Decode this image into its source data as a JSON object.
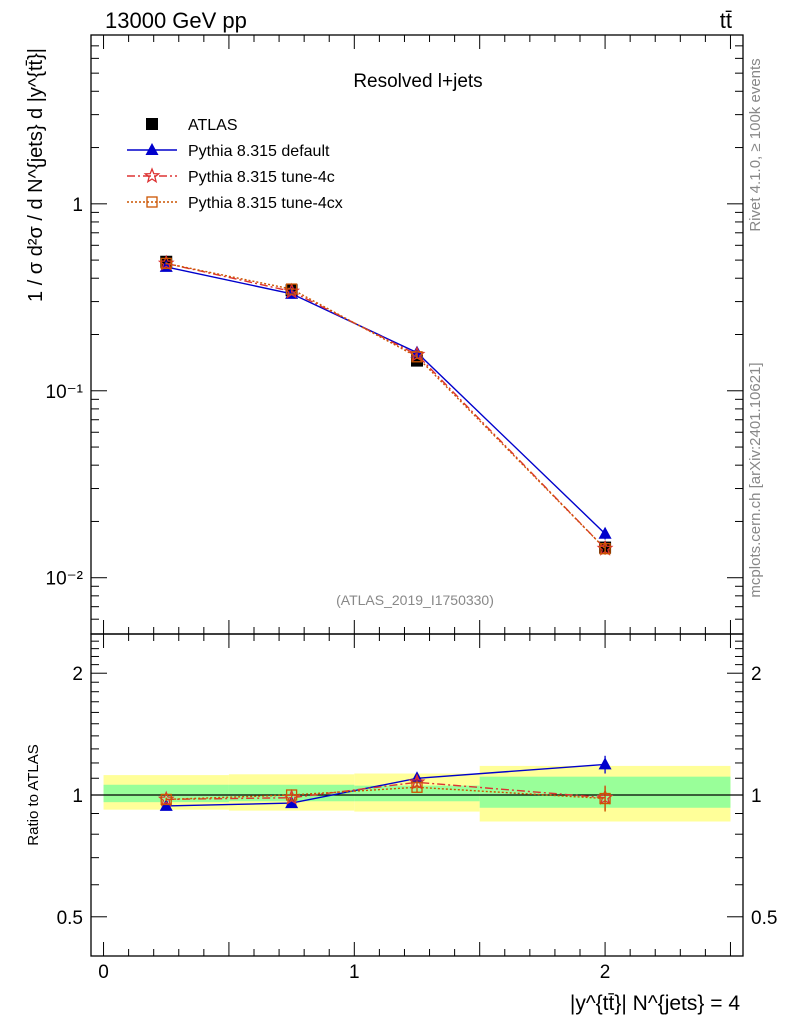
{
  "header": {
    "energy_label": "13000 GeV pp",
    "process_label": "tt̄"
  },
  "side_labels": {
    "rivet": "Rivet 4.1.0, ≥ 100k events",
    "mcplots": "mcplots.cern.ch [arXiv:2401.10621]"
  },
  "chart_data": [
    {
      "type": "line",
      "panel": "main",
      "title": "Resolved l+jets",
      "analysis_id": "(ATLAS_2019_I1750330)",
      "ylabel": "1 / σ d²σ / d N^{jets} d |y^{tt̄}|",
      "yscale": "log",
      "ylim": [
        0.005,
        8
      ],
      "xlim": [
        -0.05,
        2.55
      ],
      "y_ticks": [
        {
          "value": 1,
          "label": "1"
        },
        {
          "value": 0.1,
          "label": "10⁻¹"
        },
        {
          "value": 0.01,
          "label": "10⁻²"
        }
      ],
      "bin_edges": [
        0,
        0.5,
        1,
        1.5,
        2.5
      ],
      "x": [
        0.25,
        0.75,
        1.25,
        2.0
      ],
      "series": [
        {
          "name": "ATLAS",
          "color": "#000000",
          "marker": "square",
          "style": "none",
          "values": [
            0.49,
            0.345,
            0.145,
            0.0145
          ],
          "errors": [
            0.015,
            0.01,
            0.005,
            0.0012
          ]
        },
        {
          "name": "Pythia 8.315 default",
          "color": "#0000cc",
          "marker": "triangle",
          "style": "solid",
          "values": [
            0.46,
            0.33,
            0.16,
            0.0172
          ],
          "errors": [
            0.006,
            0.005,
            0.004,
            0.0012
          ]
        },
        {
          "name": "Pythia 8.315 tune-4c",
          "color": "#dd3333",
          "marker": "star",
          "style": "dashdot",
          "values": [
            0.48,
            0.34,
            0.156,
            0.0143
          ],
          "errors": [
            0.006,
            0.005,
            0.004,
            0.001
          ]
        },
        {
          "name": "Pythia 8.315 tune-4cx",
          "color": "#cc5500",
          "marker": "open-square",
          "style": "dotted",
          "values": [
            0.48,
            0.35,
            0.152,
            0.0143
          ],
          "errors": [
            0.006,
            0.005,
            0.004,
            0.001
          ]
        }
      ],
      "legend_position": "top-left"
    },
    {
      "type": "line",
      "panel": "ratio",
      "ylabel": "Ratio to ATLAS",
      "xlabel": "|y^{tt̄}| N^{jets} = 4",
      "yscale": "log",
      "ylim": [
        0.4,
        2.5
      ],
      "y_ticks": [
        {
          "value": 2,
          "label": "2"
        },
        {
          "value": 1,
          "label": "1"
        },
        {
          "value": 0.5,
          "label": "0.5"
        }
      ],
      "x_ticks": [
        {
          "value": 0,
          "label": "0"
        },
        {
          "value": 1,
          "label": "1"
        },
        {
          "value": 2,
          "label": "2"
        }
      ],
      "bands": {
        "edges": [
          0,
          0.5,
          1,
          1.5,
          2.5
        ],
        "stat_low": [
          0.96,
          0.965,
          0.965,
          0.93
        ],
        "stat_high": [
          1.06,
          1.06,
          1.055,
          1.11
        ],
        "total_low": [
          0.92,
          0.915,
          0.91,
          0.86
        ],
        "total_high": [
          1.12,
          1.125,
          1.13,
          1.18
        ],
        "stat_color": "#99ff99",
        "total_color": "#ffff99"
      },
      "x": [
        0.25,
        0.75,
        1.25,
        2.0
      ],
      "series": [
        {
          "name": "Pythia 8.315 default",
          "color": "#0000cc",
          "marker": "triangle",
          "style": "solid",
          "values": [
            0.94,
            0.955,
            1.1,
            1.19
          ],
          "errors": [
            0.01,
            0.01,
            0.03,
            0.06
          ]
        },
        {
          "name": "Pythia 8.315 tune-4c",
          "color": "#dd3333",
          "marker": "star",
          "style": "dashdot",
          "values": [
            0.975,
            0.985,
            1.075,
            0.985
          ],
          "errors": [
            0.01,
            0.01,
            0.03,
            0.07
          ]
        },
        {
          "name": "Pythia 8.315 tune-4cx",
          "color": "#cc5500",
          "marker": "open-square",
          "style": "dotted",
          "values": [
            0.975,
            1.0,
            1.045,
            0.98
          ],
          "errors": [
            0.01,
            0.01,
            0.03,
            0.07
          ]
        }
      ]
    }
  ]
}
